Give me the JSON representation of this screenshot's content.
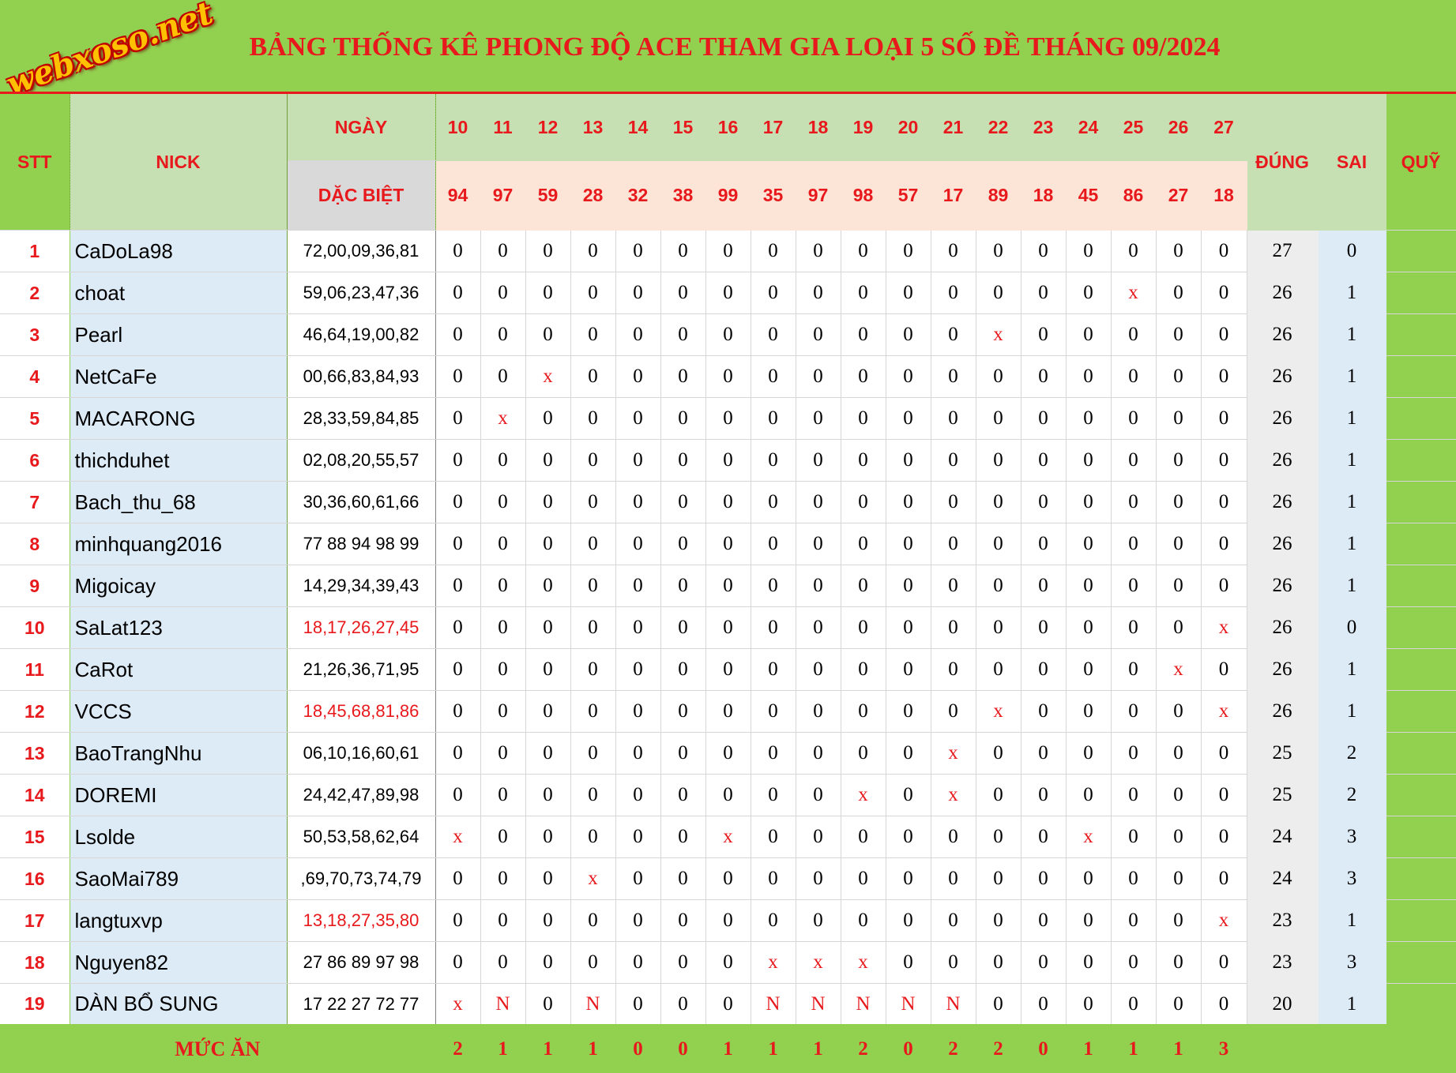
{
  "logo_text": "webxoso.net",
  "title": "BẢNG THỐNG KÊ PHONG ĐỘ ACE THAM GIA LOẠI 5 SỐ ĐỀ THÁNG 09/2024",
  "headers": {
    "stt": "STT",
    "nick": "NICK",
    "ngay": "NGÀY",
    "dac_biet": "DẶC BIỆT",
    "dung": "ĐÚNG",
    "sai": "SAI",
    "quy": "QUỸ"
  },
  "days": [
    "10",
    "11",
    "12",
    "13",
    "14",
    "15",
    "16",
    "17",
    "18",
    "19",
    "20",
    "21",
    "22",
    "23",
    "24",
    "25",
    "26",
    "27"
  ],
  "specials": [
    "94",
    "97",
    "59",
    "28",
    "32",
    "38",
    "99",
    "35",
    "97",
    "98",
    "57",
    "17",
    "89",
    "18",
    "45",
    "86",
    "27",
    "18"
  ],
  "rows": [
    {
      "stt": "1",
      "nick": "CaDoLa98",
      "set": "72,00,09,36,81",
      "set_red": false,
      "marks": [
        "0",
        "0",
        "0",
        "0",
        "0",
        "0",
        "0",
        "0",
        "0",
        "0",
        "0",
        "0",
        "0",
        "0",
        "0",
        "0",
        "0",
        "0"
      ],
      "dung": "27",
      "sai": "0"
    },
    {
      "stt": "2",
      "nick": "choat",
      "set": "59,06,23,47,36",
      "set_red": false,
      "marks": [
        "0",
        "0",
        "0",
        "0",
        "0",
        "0",
        "0",
        "0",
        "0",
        "0",
        "0",
        "0",
        "0",
        "0",
        "0",
        "x",
        "0",
        "0"
      ],
      "dung": "26",
      "sai": "1"
    },
    {
      "stt": "3",
      "nick": "Pearl",
      "set": "46,64,19,00,82",
      "set_red": false,
      "marks": [
        "0",
        "0",
        "0",
        "0",
        "0",
        "0",
        "0",
        "0",
        "0",
        "0",
        "0",
        "0",
        "x",
        "0",
        "0",
        "0",
        "0",
        "0"
      ],
      "dung": "26",
      "sai": "1"
    },
    {
      "stt": "4",
      "nick": "NetCaFe",
      "set": "00,66,83,84,93",
      "set_red": false,
      "marks": [
        "0",
        "0",
        "x",
        "0",
        "0",
        "0",
        "0",
        "0",
        "0",
        "0",
        "0",
        "0",
        "0",
        "0",
        "0",
        "0",
        "0",
        "0"
      ],
      "dung": "26",
      "sai": "1"
    },
    {
      "stt": "5",
      "nick": "MACARONG",
      "set": "28,33,59,84,85",
      "set_red": false,
      "marks": [
        "0",
        "x",
        "0",
        "0",
        "0",
        "0",
        "0",
        "0",
        "0",
        "0",
        "0",
        "0",
        "0",
        "0",
        "0",
        "0",
        "0",
        "0"
      ],
      "dung": "26",
      "sai": "1"
    },
    {
      "stt": "6",
      "nick": "thichduhet",
      "set": "02,08,20,55,57",
      "set_red": false,
      "marks": [
        "0",
        "0",
        "0",
        "0",
        "0",
        "0",
        "0",
        "0",
        "0",
        "0",
        "0",
        "0",
        "0",
        "0",
        "0",
        "0",
        "0",
        "0"
      ],
      "dung": "26",
      "sai": "1"
    },
    {
      "stt": "7",
      "nick": "Bach_thu_68",
      "set": "30,36,60,61,66",
      "set_red": false,
      "marks": [
        "0",
        "0",
        "0",
        "0",
        "0",
        "0",
        "0",
        "0",
        "0",
        "0",
        "0",
        "0",
        "0",
        "0",
        "0",
        "0",
        "0",
        "0"
      ],
      "dung": "26",
      "sai": "1"
    },
    {
      "stt": "8",
      "nick": "minhquang2016",
      "set": "77 88 94 98 99",
      "set_red": false,
      "marks": [
        "0",
        "0",
        "0",
        "0",
        "0",
        "0",
        "0",
        "0",
        "0",
        "0",
        "0",
        "0",
        "0",
        "0",
        "0",
        "0",
        "0",
        "0"
      ],
      "dung": "26",
      "sai": "1"
    },
    {
      "stt": "9",
      "nick": "Migoicay",
      "set": "14,29,34,39,43",
      "set_red": false,
      "marks": [
        "0",
        "0",
        "0",
        "0",
        "0",
        "0",
        "0",
        "0",
        "0",
        "0",
        "0",
        "0",
        "0",
        "0",
        "0",
        "0",
        "0",
        "0"
      ],
      "dung": "26",
      "sai": "1"
    },
    {
      "stt": "10",
      "nick": "SaLat123",
      "set": "18,17,26,27,45",
      "set_red": true,
      "marks": [
        "0",
        "0",
        "0",
        "0",
        "0",
        "0",
        "0",
        "0",
        "0",
        "0",
        "0",
        "0",
        "0",
        "0",
        "0",
        "0",
        "0",
        "x"
      ],
      "dung": "26",
      "sai": "0"
    },
    {
      "stt": "11",
      "nick": "CaRot",
      "set": "21,26,36,71,95",
      "set_red": false,
      "marks": [
        "0",
        "0",
        "0",
        "0",
        "0",
        "0",
        "0",
        "0",
        "0",
        "0",
        "0",
        "0",
        "0",
        "0",
        "0",
        "0",
        "x",
        "0"
      ],
      "dung": "26",
      "sai": "1"
    },
    {
      "stt": "12",
      "nick": "VCCS",
      "set": "18,45,68,81,86",
      "set_red": true,
      "marks": [
        "0",
        "0",
        "0",
        "0",
        "0",
        "0",
        "0",
        "0",
        "0",
        "0",
        "0",
        "0",
        "x",
        "0",
        "0",
        "0",
        "0",
        "x"
      ],
      "dung": "26",
      "sai": "1"
    },
    {
      "stt": "13",
      "nick": "BaoTrangNhu",
      "set": "06,10,16,60,61",
      "set_red": false,
      "marks": [
        "0",
        "0",
        "0",
        "0",
        "0",
        "0",
        "0",
        "0",
        "0",
        "0",
        "0",
        "x",
        "0",
        "0",
        "0",
        "0",
        "0",
        "0"
      ],
      "dung": "25",
      "sai": "2"
    },
    {
      "stt": "14",
      "nick": "DOREMI",
      "set": "24,42,47,89,98",
      "set_red": false,
      "marks": [
        "0",
        "0",
        "0",
        "0",
        "0",
        "0",
        "0",
        "0",
        "0",
        "x",
        "0",
        "x",
        "0",
        "0",
        "0",
        "0",
        "0",
        "0"
      ],
      "dung": "25",
      "sai": "2"
    },
    {
      "stt": "15",
      "nick": "Lsolde",
      "set": "50,53,58,62,64",
      "set_red": false,
      "marks": [
        "x",
        "0",
        "0",
        "0",
        "0",
        "0",
        "x",
        "0",
        "0",
        "0",
        "0",
        "0",
        "0",
        "0",
        "x",
        "0",
        "0",
        "0"
      ],
      "dung": "24",
      "sai": "3"
    },
    {
      "stt": "16",
      "nick": "SaoMai789",
      "set": ",69,70,73,74,79",
      "set_red": false,
      "marks": [
        "0",
        "0",
        "0",
        "x",
        "0",
        "0",
        "0",
        "0",
        "0",
        "0",
        "0",
        "0",
        "0",
        "0",
        "0",
        "0",
        "0",
        "0"
      ],
      "dung": "24",
      "sai": "3"
    },
    {
      "stt": "17",
      "nick": "langtuxvp",
      "set": "13,18,27,35,80",
      "set_red": true,
      "marks": [
        "0",
        "0",
        "0",
        "0",
        "0",
        "0",
        "0",
        "0",
        "0",
        "0",
        "0",
        "0",
        "0",
        "0",
        "0",
        "0",
        "0",
        "x"
      ],
      "dung": "23",
      "sai": "1"
    },
    {
      "stt": "18",
      "nick": "Nguyen82",
      "set": "27 86 89 97 98",
      "set_red": false,
      "marks": [
        "0",
        "0",
        "0",
        "0",
        "0",
        "0",
        "0",
        "x",
        "x",
        "x",
        "0",
        "0",
        "0",
        "0",
        "0",
        "0",
        "0",
        "0"
      ],
      "dung": "23",
      "sai": "3"
    },
    {
      "stt": "19",
      "nick": "DÀN BỔ SUNG",
      "set": "17 22 27 72 77",
      "set_red": false,
      "marks": [
        "x",
        "N",
        "0",
        "N",
        "0",
        "0",
        "0",
        "N",
        "N",
        "N",
        "N",
        "N",
        "0",
        "0",
        "0",
        "0",
        "0",
        "0"
      ],
      "dung": "20",
      "sai": "1"
    }
  ],
  "footer": {
    "label": "MỨC ĂN",
    "values": [
      "2",
      "1",
      "1",
      "1",
      "0",
      "0",
      "1",
      "1",
      "1",
      "2",
      "0",
      "2",
      "2",
      "0",
      "1",
      "1",
      "1",
      "3"
    ]
  }
}
